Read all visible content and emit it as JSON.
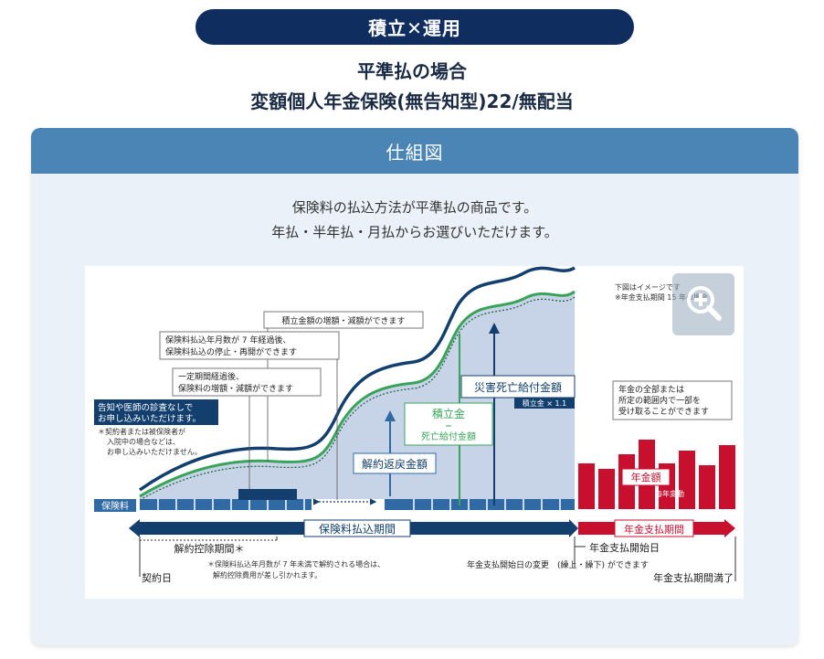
{
  "header": {
    "pill": "積立✕運用",
    "title1": "平準払の場合",
    "title2": "変額個人年金保険(無告知型)22/無配当"
  },
  "panel": {
    "heading": "仕組図",
    "desc1": "保険料の払込方法が平準払の商品です。",
    "desc2": "年払・半年払・月払からお選びいただけます。"
  },
  "chart": {
    "note_top": "下図はイメージです",
    "note_top2": "※年金支払期間 15 年の場合",
    "callout1": "積立金額の増額・減額ができます",
    "callout2a": "保険料払込年月数が 7 年経過後、",
    "callout2b": "保険料払込の停止・再開ができます",
    "callout3a": "一定期間経過後、",
    "callout3b": "保険料の増額・減額ができます",
    "callout_left_a": "告知や医師の診査なしで",
    "callout_left_b": "お申し込みいただけます。",
    "left_note_a": "＊契約者または被保険者が",
    "left_note_b": "入院中の場合などは、",
    "left_note_c": "お申し込みいただけません。",
    "surrender": "解約返戻金額",
    "reserve": "積立金",
    "eq": "＝",
    "death_benefit": "死亡給付金額",
    "disaster": "災害死亡給付金額",
    "disaster_sub": "積立金 × 1.1",
    "annuity_note_a": "年金の全部または",
    "annuity_note_b": "所定の範囲内で一部を",
    "annuity_note_c": "受け取ることができます",
    "annuity": "年金額",
    "annuity_sub": "毎年変動",
    "premium": "保険料",
    "premium_period": "保険料払込期間",
    "annuity_period": "年金支払期間",
    "deduction": "解約控除期間＊",
    "deduction_note_a": "＊保険料払込年月数が 7 年未満で解約される場合は、",
    "deduction_note_b": "解約控除費用が差し引かれます。",
    "contract_day": "契約日",
    "start_day": "年金支払開始日",
    "change_note": "年金支払開始日の変更　(繰上・繰下) ができます",
    "end": "年金支払期間満了",
    "colors": {
      "navy": "#123f6e",
      "green": "#3aa35a",
      "fill": "#c7d4e8",
      "red": "#c8102e",
      "blue": "#2f6aa5"
    }
  }
}
